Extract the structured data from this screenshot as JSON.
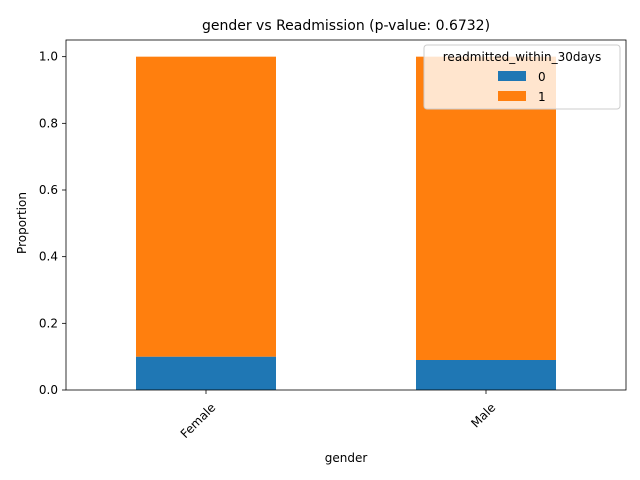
{
  "chart_data": {
    "type": "bar",
    "stacked": true,
    "title": "gender vs Readmission (p-value: 0.6732)",
    "xlabel": "gender",
    "ylabel": "Proportion",
    "categories": [
      "Female",
      "Male"
    ],
    "series": [
      {
        "name": "0",
        "values": [
          0.1,
          0.09
        ],
        "color": "#1f77b4"
      },
      {
        "name": "1",
        "values": [
          0.9,
          0.91
        ],
        "color": "#ff7f0e"
      }
    ],
    "ylim": [
      0,
      1.05
    ],
    "yticks": [
      "0.0",
      "0.2",
      "0.4",
      "0.6",
      "0.8",
      "1.0"
    ],
    "legend": {
      "title": "readmitted_within_30days",
      "position": "top-right"
    },
    "grid": false
  }
}
